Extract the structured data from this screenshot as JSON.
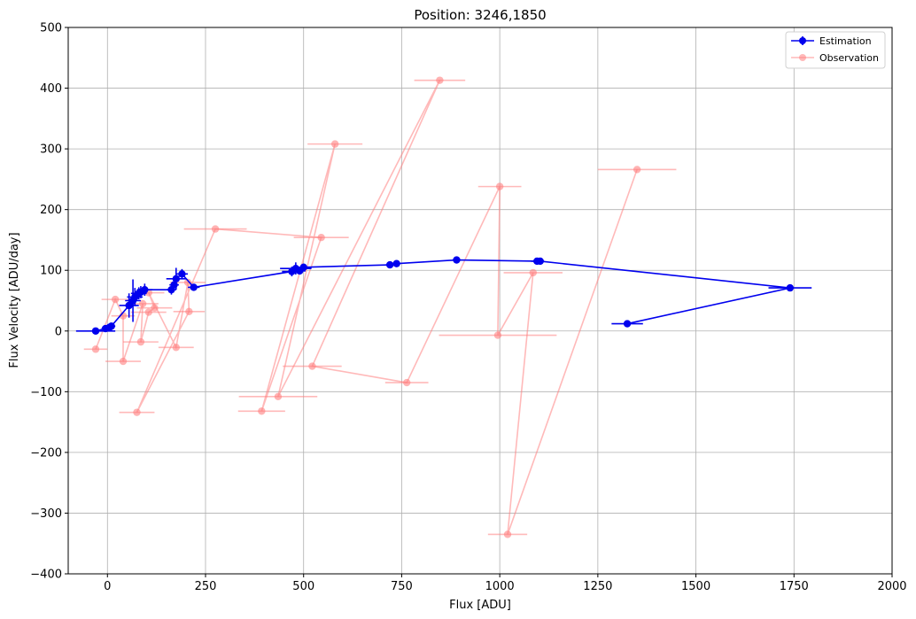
{
  "chart_data": {
    "type": "line",
    "title": "Position: 3246,1850",
    "xlabel": "Flux [ADU]",
    "ylabel": "Flux Velocity [ADU/day]",
    "xlim": [
      -100,
      2000
    ],
    "ylim": [
      -400,
      500
    ],
    "xticks": [
      0,
      250,
      500,
      750,
      1000,
      1250,
      1500,
      1750,
      2000
    ],
    "yticks": [
      -400,
      -300,
      -200,
      -100,
      0,
      100,
      200,
      300,
      400,
      500
    ],
    "grid": true,
    "legend_position": "top-right",
    "series": [
      {
        "name": "Observation",
        "color": "#ff8080",
        "points": [
          {
            "x": -30,
            "y": -30,
            "xerr": 30,
            "yerr": 0
          },
          {
            "x": 20,
            "y": 52,
            "xerr": 35,
            "yerr": 0
          },
          {
            "x": 40,
            "y": 25,
            "xerr": 30,
            "yerr": 0
          },
          {
            "x": 40,
            "y": -50,
            "xerr": 45,
            "yerr": 0
          },
          {
            "x": 75,
            "y": -134,
            "xerr": 45,
            "yerr": 0
          },
          {
            "x": 85,
            "y": -18,
            "xerr": 45,
            "yerr": 0
          },
          {
            "x": 90,
            "y": 45,
            "xerr": 40,
            "yerr": 0
          },
          {
            "x": 105,
            "y": 63,
            "xerr": 40,
            "yerr": 0
          },
          {
            "x": 105,
            "y": 31,
            "xerr": 45,
            "yerr": 0
          },
          {
            "x": 120,
            "y": 38,
            "xerr": 45,
            "yerr": 0
          },
          {
            "x": 175,
            "y": -27,
            "xerr": 45,
            "yerr": 0
          },
          {
            "x": 205,
            "y": 80,
            "xerr": 45,
            "yerr": 0
          },
          {
            "x": 208,
            "y": 32,
            "xerr": 40,
            "yerr": 0
          },
          {
            "x": 275,
            "y": 168,
            "xerr": 80,
            "yerr": 0
          },
          {
            "x": 393,
            "y": -132,
            "xerr": 60,
            "yerr": 0
          },
          {
            "x": 435,
            "y": -108,
            "xerr": 100,
            "yerr": 0
          },
          {
            "x": 522,
            "y": -58,
            "xerr": 75,
            "yerr": 0
          },
          {
            "x": 545,
            "y": 154,
            "xerr": 70,
            "yerr": 0
          },
          {
            "x": 580,
            "y": 308,
            "xerr": 70,
            "yerr": 0
          },
          {
            "x": 763,
            "y": -85,
            "xerr": 55,
            "yerr": 0
          },
          {
            "x": 847,
            "y": 413,
            "xerr": 65,
            "yerr": 0
          },
          {
            "x": 995,
            "y": -7,
            "xerr": 150,
            "yerr": 0
          },
          {
            "x": 1000,
            "y": 238,
            "xerr": 55,
            "yerr": 0
          },
          {
            "x": 1085,
            "y": 96,
            "xerr": 75,
            "yerr": 0
          },
          {
            "x": 1020,
            "y": -335,
            "xerr": 50,
            "yerr": 0
          },
          {
            "x": 1350,
            "y": 266,
            "xerr": 100,
            "yerr": 0
          }
        ],
        "path_order": [
          0,
          1,
          2,
          3,
          6,
          5,
          8,
          9,
          7,
          10,
          11,
          12,
          4,
          13,
          17,
          14,
          18,
          15,
          20,
          16,
          19,
          22,
          21,
          23,
          24,
          25
        ]
      },
      {
        "name": "Estimation",
        "color": "#0000ee",
        "points": [
          {
            "x": -30,
            "y": 0,
            "xerr": 50,
            "yerr": 3
          },
          {
            "x": -5,
            "y": 4,
            "xerr": 10,
            "yerr": 4
          },
          {
            "x": 5,
            "y": 6,
            "xerr": 10,
            "yerr": 5
          },
          {
            "x": 10,
            "y": 8,
            "xerr": 10,
            "yerr": 5
          },
          {
            "x": 55,
            "y": 42,
            "xerr": 25,
            "yerr": 20
          },
          {
            "x": 65,
            "y": 50,
            "xerr": 20,
            "yerr": 35
          },
          {
            "x": 70,
            "y": 56,
            "xerr": 20,
            "yerr": 15
          },
          {
            "x": 80,
            "y": 62,
            "xerr": 20,
            "yerr": 10
          },
          {
            "x": 85,
            "y": 64,
            "xerr": 15,
            "yerr": 10
          },
          {
            "x": 95,
            "y": 68,
            "xerr": 20,
            "yerr": 10
          },
          {
            "x": 163,
            "y": 68,
            "xerr": 12,
            "yerr": 8
          },
          {
            "x": 170,
            "y": 76,
            "xerr": 12,
            "yerr": 8
          },
          {
            "x": 175,
            "y": 86,
            "xerr": 25,
            "yerr": 18
          },
          {
            "x": 190,
            "y": 94,
            "xerr": 15,
            "yerr": 8
          },
          {
            "x": 220,
            "y": 72,
            "xerr": 15,
            "yerr": 5
          },
          {
            "x": 470,
            "y": 98,
            "xerr": 25,
            "yerr": 8
          },
          {
            "x": 480,
            "y": 103,
            "xerr": 40,
            "yerr": 10
          },
          {
            "x": 490,
            "y": 99,
            "xerr": 15,
            "yerr": 6
          },
          {
            "x": 500,
            "y": 105,
            "xerr": 20,
            "yerr": 6
          },
          {
            "x": 720,
            "y": 109,
            "xerr": 10,
            "yerr": 4
          },
          {
            "x": 737,
            "y": 111,
            "xerr": 10,
            "yerr": 4
          },
          {
            "x": 890,
            "y": 117,
            "xerr": 10,
            "yerr": 4
          },
          {
            "x": 1095,
            "y": 115,
            "xerr": 15,
            "yerr": 4
          },
          {
            "x": 1103,
            "y": 115,
            "xerr": 10,
            "yerr": 4
          },
          {
            "x": 1740,
            "y": 71,
            "xerr": 55,
            "yerr": 4
          },
          {
            "x": 1325,
            "y": 12,
            "xerr": 40,
            "yerr": 4
          }
        ]
      }
    ]
  }
}
